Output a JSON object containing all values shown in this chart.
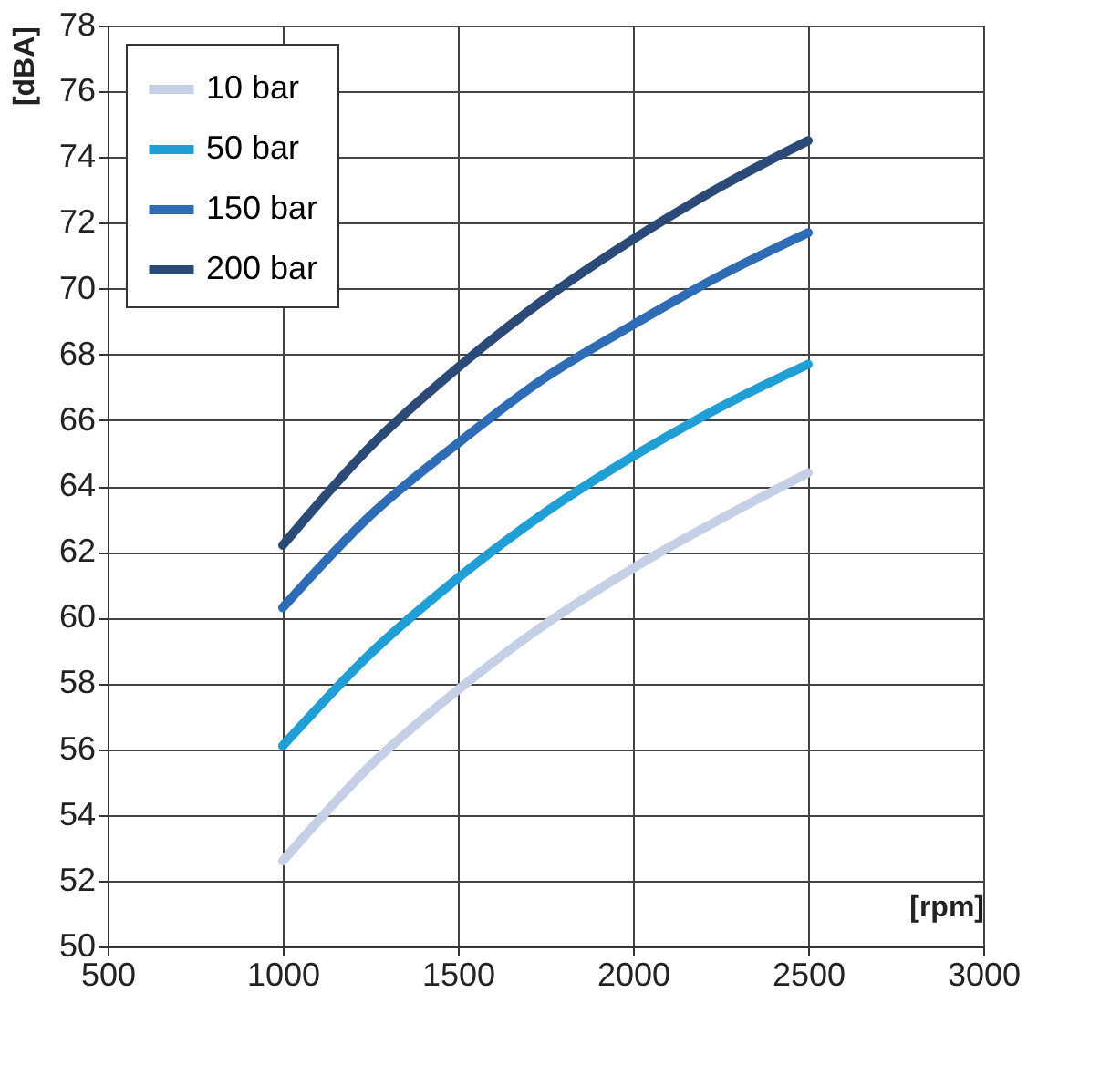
{
  "chart_data": {
    "type": "line",
    "xlabel": "[rpm]",
    "ylabel": "[dBA]",
    "x": [
      1000,
      1250,
      1500,
      1750,
      2000,
      2250,
      2500
    ],
    "series": [
      {
        "name": "10 bar",
        "color": "#c5d0e6",
        "values": [
          52.6,
          55.5,
          57.8,
          59.8,
          61.5,
          63.0,
          64.4
        ]
      },
      {
        "name": "50 bar",
        "color": "#1f9fd6",
        "values": [
          56.1,
          58.9,
          61.2,
          63.2,
          64.9,
          66.4,
          67.7
        ]
      },
      {
        "name": "150 bar",
        "color": "#2e6db5",
        "values": [
          60.3,
          63.1,
          65.3,
          67.3,
          68.9,
          70.4,
          71.7
        ]
      },
      {
        "name": "200 bar",
        "color": "#2b4a78",
        "values": [
          62.2,
          65.2,
          67.6,
          69.7,
          71.5,
          73.1,
          74.5
        ]
      }
    ],
    "xlim": [
      500,
      3000
    ],
    "xticks": [
      500,
      1000,
      1500,
      2000,
      2500,
      3000
    ],
    "ylim": [
      50,
      78
    ],
    "yticks": [
      50,
      52,
      54,
      56,
      58,
      60,
      62,
      64,
      66,
      68,
      70,
      72,
      74,
      76,
      78
    ],
    "grid": true,
    "legend": "top left",
    "marker": "none",
    "line_style": "solid"
  }
}
